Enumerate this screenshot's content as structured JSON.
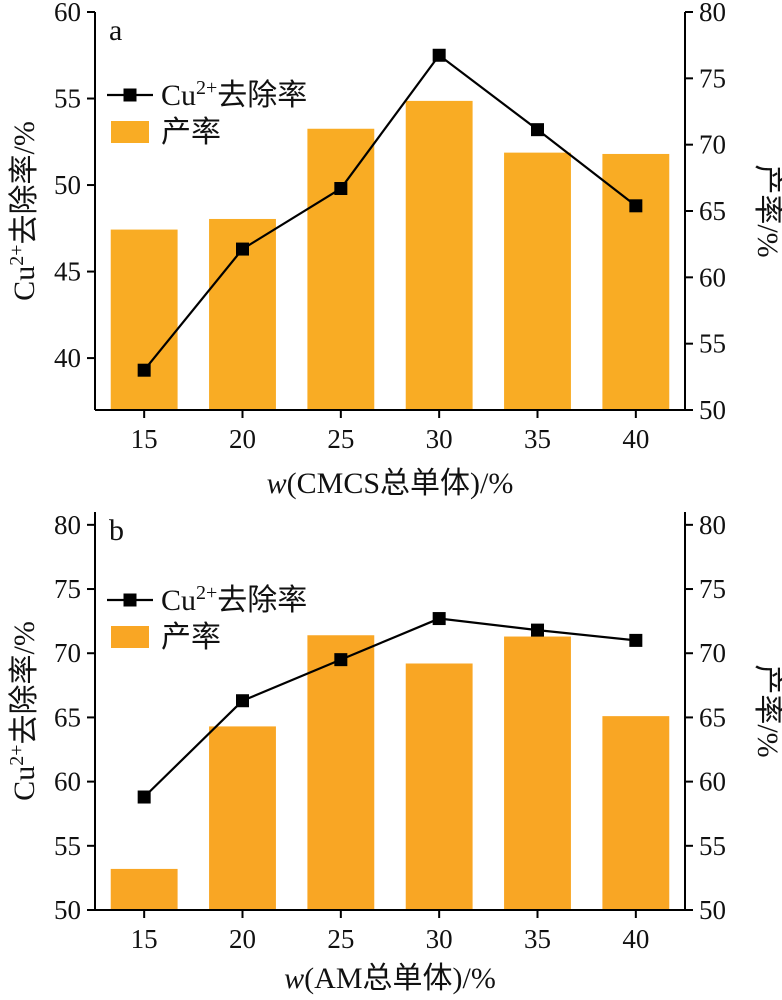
{
  "chart_data": [
    {
      "panel_label": "a",
      "type": "bar+line",
      "categories": [
        "15",
        "20",
        "25",
        "30",
        "35",
        "40"
      ],
      "xlabel_italic": "w",
      "xlabel_rest": "(CMCS总单体)/%",
      "ylabel_left_base": "Cu",
      "ylabel_left_sup": "2+",
      "ylabel_left_rest": "去除率/%",
      "ylabel_right": "产率/%",
      "ylim_left": [
        37,
        60
      ],
      "ylim_right": [
        50,
        80
      ],
      "yticks_left": [
        "40",
        "45",
        "50",
        "55",
        "60"
      ],
      "yticks_right": [
        "50",
        "55",
        "60",
        "65",
        "70",
        "75",
        "80"
      ],
      "legend_placement": "upper-left",
      "series": [
        {
          "name_base": "Cu",
          "name_sup": "2+",
          "name_rest": "去除率",
          "type": "line",
          "axis": "left",
          "values": [
            39.3,
            46.3,
            49.8,
            57.5,
            53.2,
            48.8
          ]
        },
        {
          "name": "产率",
          "type": "bar",
          "axis": "right",
          "values": [
            63.6,
            64.4,
            71.2,
            73.3,
            69.4,
            69.3
          ]
        }
      ],
      "colors": {
        "bar": "#F9AC24",
        "line": "#000000"
      }
    },
    {
      "panel_label": "b",
      "type": "bar+line",
      "categories": [
        "15",
        "20",
        "25",
        "30",
        "35",
        "40"
      ],
      "xlabel_italic": "w",
      "xlabel_rest": "(AM总单体)/%",
      "ylabel_left_base": "Cu",
      "ylabel_left_sup": "2+",
      "ylabel_left_rest": "去除率/%",
      "ylabel_right": "产率/%",
      "ylim_left": [
        50,
        81
      ],
      "ylim_right": [
        50,
        81
      ],
      "yticks_left": [
        "50",
        "55",
        "60",
        "65",
        "70",
        "75",
        "80"
      ],
      "yticks_right": [
        "50",
        "55",
        "60",
        "65",
        "70",
        "75",
        "80"
      ],
      "legend_placement": "upper-left",
      "series": [
        {
          "name_base": "Cu",
          "name_sup": "2+",
          "name_rest": "去除率",
          "type": "line",
          "axis": "left",
          "values": [
            58.8,
            66.3,
            69.5,
            72.7,
            71.8,
            71.0
          ]
        },
        {
          "name": "产率",
          "type": "bar",
          "axis": "right",
          "values": [
            53.2,
            64.3,
            71.4,
            69.2,
            71.3,
            65.1
          ]
        }
      ],
      "colors": {
        "bar": "#F9A624",
        "line": "#000000"
      }
    }
  ]
}
